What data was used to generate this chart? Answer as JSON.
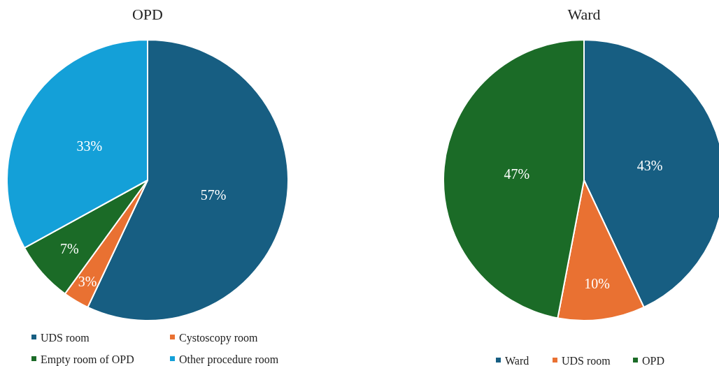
{
  "chart_data": [
    {
      "type": "pie",
      "title": "OPD",
      "categories": [
        "UDS room",
        "Cystoscopy room",
        "Empty room of OPD",
        "Other procedure room"
      ],
      "values": [
        57,
        3,
        7,
        33
      ],
      "colors": [
        "#175e82",
        "#e97132",
        "#1b6b27",
        "#14a0d8"
      ],
      "value_labels": [
        "57%",
        "3%",
        "7%",
        "33%"
      ],
      "legend": "bottom"
    },
    {
      "type": "pie",
      "title": "Ward",
      "categories": [
        "Ward",
        "UDS room",
        "OPD"
      ],
      "values": [
        43,
        10,
        47
      ],
      "colors": [
        "#175e82",
        "#e97132",
        "#1b6b27"
      ],
      "value_labels": [
        "43%",
        "10%",
        "47%"
      ],
      "legend": "bottom"
    }
  ]
}
